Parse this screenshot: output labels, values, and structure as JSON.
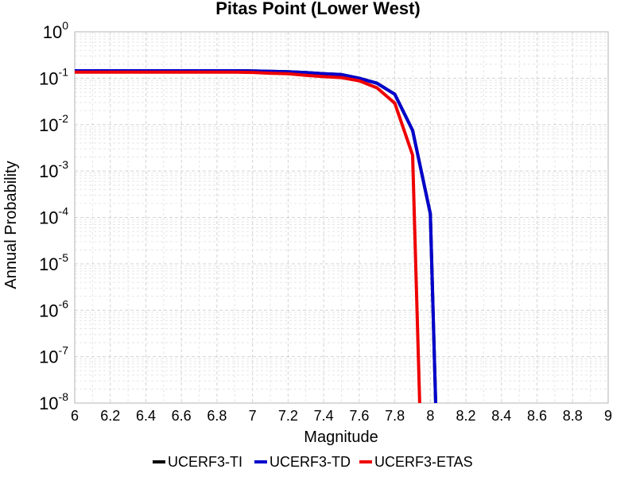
{
  "chart_data": {
    "type": "line",
    "title": "Pitas Point (Lower West)",
    "xlabel": "Magnitude",
    "ylabel": "Annual Probability",
    "xlim": [
      6,
      9
    ],
    "ylim": [
      1e-08,
      1
    ],
    "yscale": "log",
    "xticks": [
      "6",
      "6.2",
      "6.4",
      "6.6",
      "6.8",
      "7",
      "7.2",
      "7.4",
      "7.6",
      "7.8",
      "8",
      "8.2",
      "8.4",
      "8.6",
      "8.8",
      "9"
    ],
    "yticks": [
      {
        "base": "10",
        "exp": "0",
        "value": 1
      },
      {
        "base": "10",
        "exp": "-1",
        "value": 0.1
      },
      {
        "base": "10",
        "exp": "-2",
        "value": 0.01
      },
      {
        "base": "10",
        "exp": "-3",
        "value": 0.001
      },
      {
        "base": "10",
        "exp": "-4",
        "value": 0.0001
      },
      {
        "base": "10",
        "exp": "-5",
        "value": 1e-05
      },
      {
        "base": "10",
        "exp": "-6",
        "value": 1e-06
      },
      {
        "base": "10",
        "exp": "-7",
        "value": 1e-07
      },
      {
        "base": "10",
        "exp": "-8",
        "value": 1e-08
      }
    ],
    "grid": true,
    "legend_position": "bottom",
    "series": [
      {
        "name": "UCERF3-TI",
        "color": "#000000",
        "x": [
          6.0,
          6.1,
          6.2,
          6.3,
          6.4,
          6.5,
          6.6,
          6.7,
          6.8,
          6.9,
          7.0,
          7.1,
          7.2,
          7.3,
          7.4,
          7.5,
          7.6,
          7.7,
          7.8,
          7.9,
          8.0,
          8.03
        ],
        "y": [
          0.145,
          0.145,
          0.145,
          0.145,
          0.145,
          0.145,
          0.145,
          0.145,
          0.145,
          0.145,
          0.143,
          0.14,
          0.138,
          0.132,
          0.125,
          0.12,
          0.1,
          0.078,
          0.045,
          0.0075,
          0.00012,
          1e-08
        ]
      },
      {
        "name": "UCERF3-TD",
        "color": "#0000cc",
        "x": [
          6.0,
          6.1,
          6.2,
          6.3,
          6.4,
          6.5,
          6.6,
          6.7,
          6.8,
          6.9,
          7.0,
          7.1,
          7.2,
          7.3,
          7.4,
          7.5,
          7.6,
          7.7,
          7.8,
          7.9,
          8.0,
          8.03
        ],
        "y": [
          0.145,
          0.145,
          0.145,
          0.145,
          0.145,
          0.145,
          0.145,
          0.145,
          0.145,
          0.145,
          0.143,
          0.14,
          0.138,
          0.132,
          0.125,
          0.12,
          0.1,
          0.078,
          0.045,
          0.0075,
          0.00012,
          1e-08
        ]
      },
      {
        "name": "UCERF3-ETAS",
        "color": "#ee0000",
        "x": [
          6.0,
          6.1,
          6.2,
          6.3,
          6.4,
          6.5,
          6.6,
          6.7,
          6.8,
          6.9,
          7.0,
          7.1,
          7.2,
          7.3,
          7.4,
          7.5,
          7.6,
          7.7,
          7.8,
          7.9,
          7.94
        ],
        "y": [
          0.135,
          0.135,
          0.135,
          0.135,
          0.135,
          0.135,
          0.135,
          0.135,
          0.135,
          0.135,
          0.133,
          0.128,
          0.125,
          0.115,
          0.108,
          0.103,
          0.088,
          0.062,
          0.029,
          0.0022,
          1e-08
        ]
      }
    ]
  }
}
